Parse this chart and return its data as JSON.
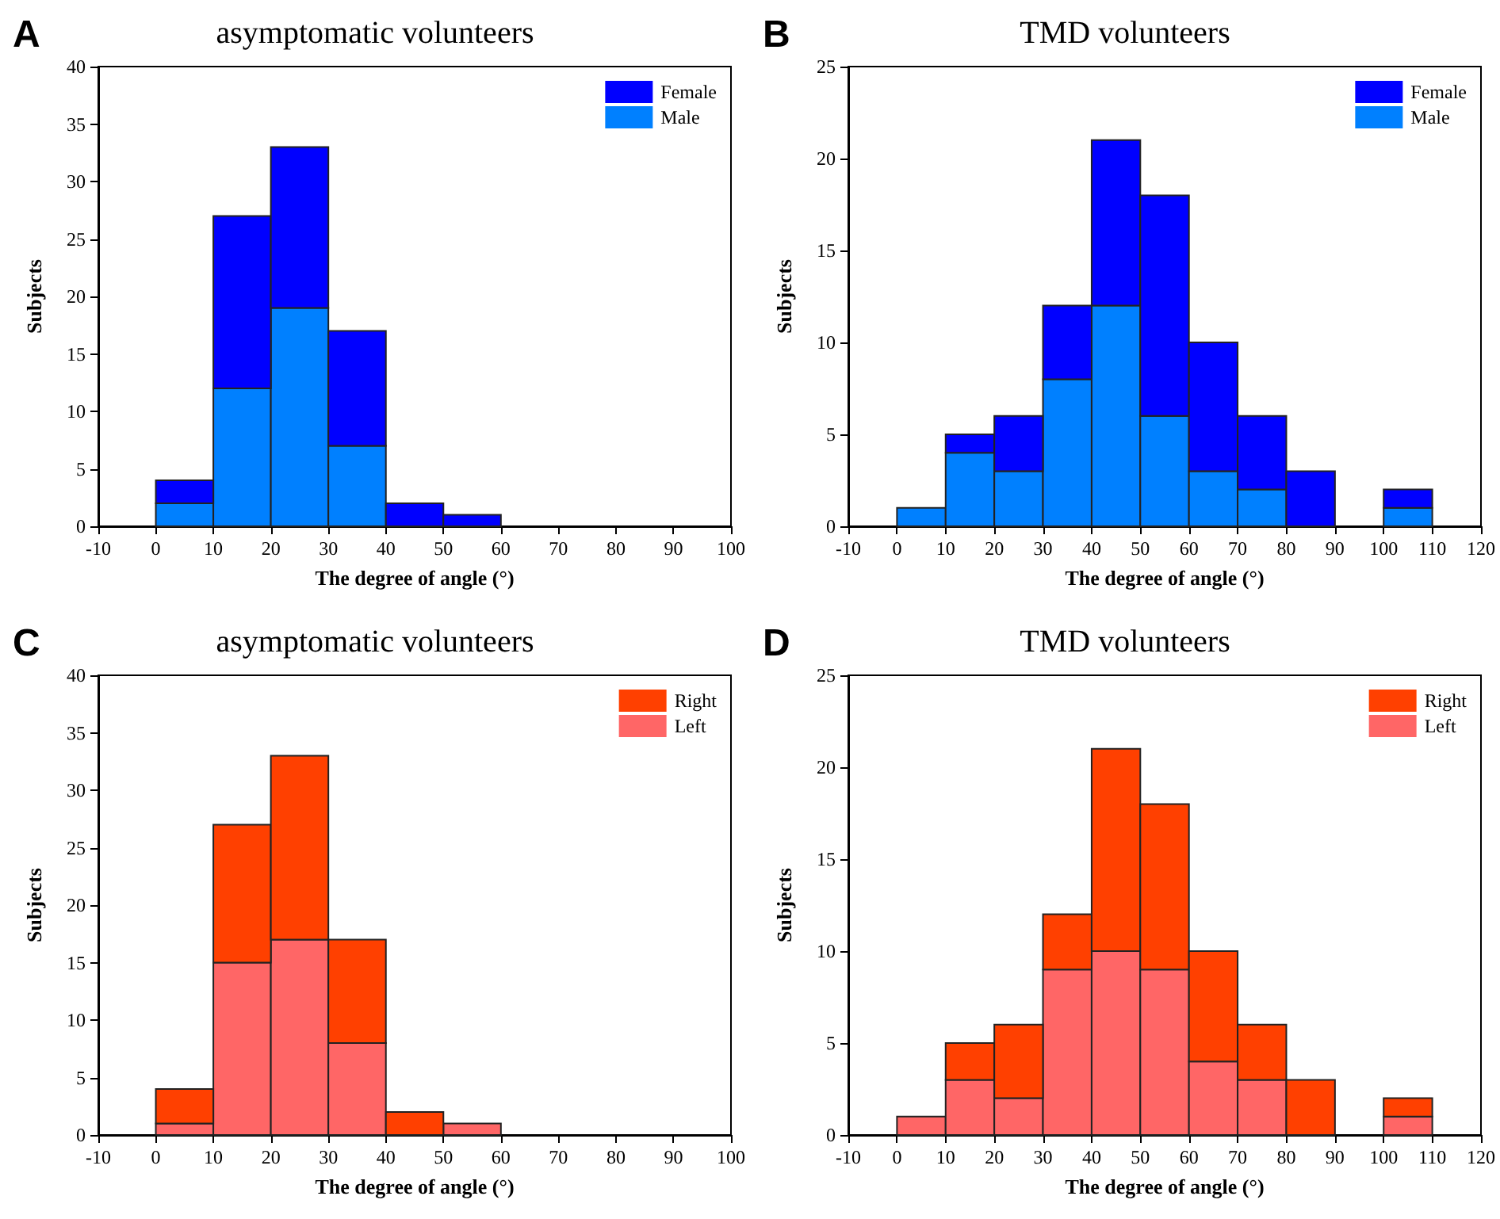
{
  "chart_data": [
    {
      "type": "bar",
      "title": "asymptomatic volunteers",
      "xlabel": "The degree of angle (°)",
      "ylabel": "Subjects",
      "annotations": [
        "A"
      ],
      "stacked": true,
      "legend": "top right",
      "x": [
        5,
        15,
        25,
        35,
        45,
        55
      ],
      "xlim": [
        -10,
        100
      ],
      "xticks": [
        -10,
        0,
        10,
        20,
        30,
        40,
        50,
        60,
        70,
        80,
        90,
        100
      ],
      "ylim": [
        0,
        40
      ],
      "yticks": [
        0,
        5,
        10,
        15,
        20,
        25,
        30,
        35,
        40
      ],
      "series": [
        {
          "name": "Male",
          "color": "#0080ff",
          "values": [
            2,
            12,
            19,
            7,
            0,
            0
          ]
        },
        {
          "name": "Female",
          "color": "#0000ff",
          "values": [
            2,
            15,
            14,
            10,
            2,
            1
          ]
        }
      ]
    },
    {
      "type": "bar",
      "title": "TMD volunteers",
      "xlabel": "The degree of angle (°)",
      "ylabel": "Subjects",
      "annotations": [
        "B"
      ],
      "stacked": true,
      "legend": "top right",
      "x": [
        5,
        15,
        25,
        35,
        45,
        55,
        65,
        75,
        85,
        95,
        105
      ],
      "xlim": [
        -10,
        120
      ],
      "xticks": [
        -10,
        0,
        10,
        20,
        30,
        40,
        50,
        60,
        70,
        80,
        90,
        100,
        110,
        120
      ],
      "ylim": [
        0,
        25
      ],
      "yticks": [
        0,
        5,
        10,
        15,
        20,
        25
      ],
      "series": [
        {
          "name": "Male",
          "color": "#0080ff",
          "values": [
            1,
            4,
            3,
            8,
            12,
            6,
            3,
            2,
            0,
            0,
            1
          ]
        },
        {
          "name": "Female",
          "color": "#0000ff",
          "values": [
            0,
            1,
            3,
            4,
            9,
            12,
            7,
            4,
            3,
            0,
            1
          ]
        }
      ]
    },
    {
      "type": "bar",
      "title": "asymptomatic volunteers",
      "xlabel": "The degree of angle (°)",
      "ylabel": "Subjects",
      "annotations": [
        "C"
      ],
      "stacked": true,
      "legend": "top right",
      "x": [
        5,
        15,
        25,
        35,
        45,
        55
      ],
      "xlim": [
        -10,
        100
      ],
      "xticks": [
        -10,
        0,
        10,
        20,
        30,
        40,
        50,
        60,
        70,
        80,
        90,
        100
      ],
      "ylim": [
        0,
        40
      ],
      "yticks": [
        0,
        5,
        10,
        15,
        20,
        25,
        30,
        35,
        40
      ],
      "series": [
        {
          "name": "Left",
          "color": "#ff6666",
          "values": [
            1,
            15,
            17,
            8,
            0,
            1
          ]
        },
        {
          "name": "Right",
          "color": "#ff4000",
          "values": [
            3,
            12,
            16,
            9,
            2,
            0
          ]
        }
      ]
    },
    {
      "type": "bar",
      "title": "TMD volunteers",
      "xlabel": "The degree of angle (°)",
      "ylabel": "Subjects",
      "annotations": [
        "D"
      ],
      "stacked": true,
      "legend": "top right",
      "x": [
        5,
        15,
        25,
        35,
        45,
        55,
        65,
        75,
        85,
        95,
        105
      ],
      "xlim": [
        -10,
        120
      ],
      "xticks": [
        -10,
        0,
        10,
        20,
        30,
        40,
        50,
        60,
        70,
        80,
        90,
        100,
        110,
        120
      ],
      "ylim": [
        0,
        25
      ],
      "yticks": [
        0,
        5,
        10,
        15,
        20,
        25
      ],
      "series": [
        {
          "name": "Left",
          "color": "#ff6666",
          "values": [
            1,
            3,
            2,
            9,
            10,
            9,
            4,
            3,
            0,
            0,
            1
          ]
        },
        {
          "name": "Right",
          "color": "#ff4000",
          "values": [
            0,
            2,
            4,
            3,
            11,
            9,
            6,
            3,
            3,
            0,
            1
          ]
        }
      ]
    }
  ]
}
